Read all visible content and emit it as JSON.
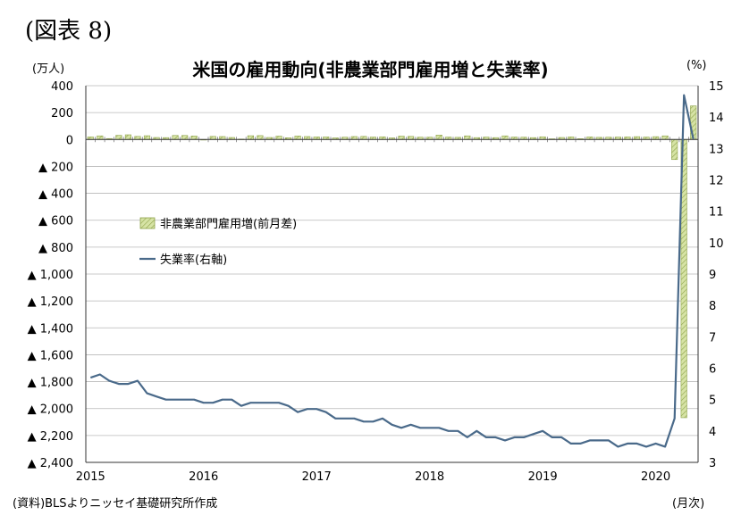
{
  "figure_label": "(図表 8)",
  "chart_data": {
    "type": "bar+line",
    "title": "米国の雇用動向(非農業部門雇用増と失業率)",
    "left_axis_unit": "(万人)",
    "right_axis_unit": "(%)",
    "x_axis_unit": "(月次)",
    "source": "(資料)BLSよりニッセイ基礎研究所作成",
    "left_ylim": [
      -2400,
      400
    ],
    "right_ylim": [
      3,
      15
    ],
    "left_ticks": [
      {
        "v": 400,
        "label": "400"
      },
      {
        "v": 200,
        "label": "200"
      },
      {
        "v": 0,
        "label": "0"
      },
      {
        "v": -200,
        "label": "▲ 200"
      },
      {
        "v": -400,
        "label": "▲ 400"
      },
      {
        "v": -600,
        "label": "▲ 600"
      },
      {
        "v": -800,
        "label": "▲ 800"
      },
      {
        "v": -1000,
        "label": "▲ 1,000"
      },
      {
        "v": -1200,
        "label": "▲ 1,200"
      },
      {
        "v": -1400,
        "label": "▲ 1,400"
      },
      {
        "v": -1600,
        "label": "▲ 1,600"
      },
      {
        "v": -1800,
        "label": "▲ 1,800"
      },
      {
        "v": -2000,
        "label": "▲ 2,000"
      },
      {
        "v": -2200,
        "label": "▲ 2,200"
      },
      {
        "v": -2400,
        "label": "▲ 2,400"
      }
    ],
    "right_ticks": [
      "15",
      "14",
      "13",
      "12",
      "11",
      "10",
      "9",
      "8",
      "7",
      "6",
      "5",
      "4",
      "3"
    ],
    "x_tick_labels": [
      {
        "label": "2015",
        "index": 0
      },
      {
        "label": "2016",
        "index": 12
      },
      {
        "label": "2017",
        "index": 24
      },
      {
        "label": "2018",
        "index": 36
      },
      {
        "label": "2019",
        "index": 48
      },
      {
        "label": "2020",
        "index": 60
      }
    ],
    "months_count": 65,
    "grid": true,
    "legend_position": "upper-left inside plot",
    "series": [
      {
        "name": "非農業部門雇用増(前月差)",
        "type": "bar",
        "axis": "left",
        "color": "#d6e3a5",
        "values": [
          19,
          27,
          7,
          31,
          35,
          23,
          28,
          15,
          14,
          30,
          30,
          26,
          -1,
          23,
          22,
          15,
          3,
          28,
          29,
          15,
          25,
          13,
          26,
          22,
          19,
          19,
          12,
          17,
          22,
          23,
          18,
          20,
          12,
          25,
          23,
          17,
          17,
          33,
          18,
          16,
          27,
          14,
          18,
          14,
          27,
          18,
          17,
          14,
          20,
          5,
          15,
          19,
          6,
          19,
          16,
          17,
          18,
          19,
          21,
          18,
          21,
          27,
          -149,
          -2068,
          250
        ]
      },
      {
        "name": "失業率(右軸)",
        "type": "line",
        "axis": "right",
        "color": "#4a6a8a",
        "values": [
          5.7,
          5.8,
          5.6,
          5.5,
          5.5,
          5.6,
          5.2,
          5.1,
          5.0,
          5.0,
          5.0,
          5.0,
          4.9,
          4.9,
          5.0,
          5.0,
          4.8,
          4.9,
          4.9,
          4.9,
          4.9,
          4.8,
          4.6,
          4.7,
          4.7,
          4.6,
          4.4,
          4.4,
          4.4,
          4.3,
          4.3,
          4.4,
          4.2,
          4.1,
          4.2,
          4.1,
          4.1,
          4.1,
          4.0,
          4.0,
          3.8,
          4.0,
          3.8,
          3.8,
          3.7,
          3.8,
          3.8,
          3.9,
          4.0,
          3.8,
          3.8,
          3.6,
          3.6,
          3.7,
          3.7,
          3.7,
          3.5,
          3.6,
          3.6,
          3.5,
          3.6,
          3.5,
          4.4,
          14.7,
          13.3
        ]
      }
    ]
  }
}
